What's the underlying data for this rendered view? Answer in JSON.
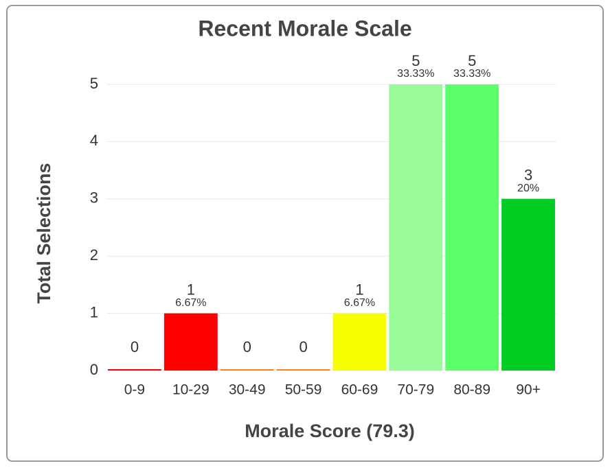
{
  "chart_data": {
    "type": "bar",
    "title": "Recent Morale Scale",
    "x_label": "Morale Score (79.3)",
    "y_label": "Total Selections",
    "categories": [
      "0-9",
      "10-29",
      "30-49",
      "50-59",
      "60-69",
      "70-79",
      "80-89",
      "90+"
    ],
    "values": [
      0,
      1,
      0,
      0,
      1,
      5,
      5,
      3
    ],
    "percent_labels": [
      null,
      "6.67%",
      null,
      null,
      "6.67%",
      "33.33%",
      "33.33%",
      "20%"
    ],
    "colors": [
      "#ff0000",
      "#ff0000",
      "#f5821f",
      "#f5821f",
      "#f5ff00",
      "#98fb98",
      "#5cff6a",
      "#00cc22"
    ],
    "ylim": [
      0,
      5
    ],
    "yticks": [
      0,
      1,
      2,
      3,
      4,
      5
    ],
    "grid": true
  }
}
